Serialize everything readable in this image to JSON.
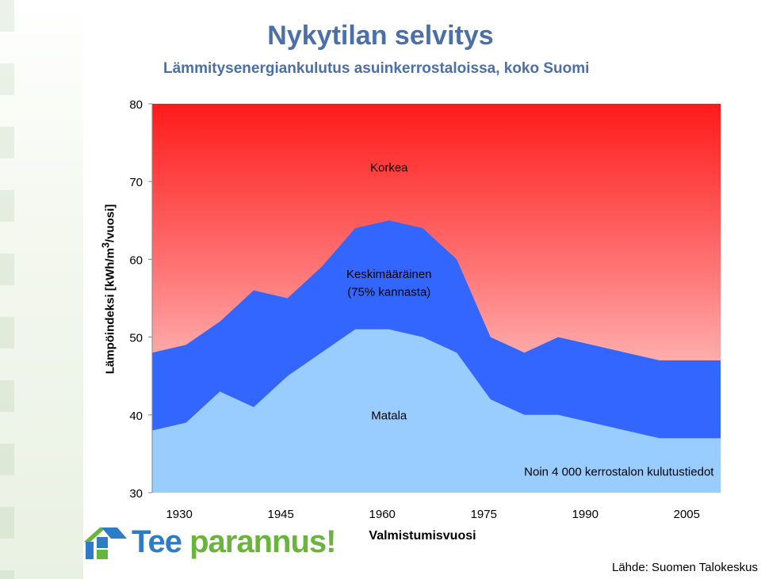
{
  "title": "Nykytilan selvitys",
  "subtitle": "Lämmitysenergiankulutus asuinkerrostaloissa, koko Suomi",
  "source": "Lähde: Suomen Talokeskus",
  "logo": {
    "part1": "Tee",
    "part2": "parannus!",
    "icon": "house-icon"
  },
  "colors": {
    "red_zone": "#ff1a1a",
    "mid_band": "#3366ff",
    "low_band": "#99ccff"
  },
  "chart_data": {
    "type": "area",
    "title": "Lämmitysenergiankulutus asuinkerrostaloissa, koko Suomi",
    "xlabel": "Valmistumisvuosi",
    "ylabel_main": "Lämpöindeksi [kWh/m",
    "ylabel_sup": "3",
    "ylabel_end": "/vuosi]",
    "xlim": [
      1926,
      2010
    ],
    "ylim": [
      30,
      80
    ],
    "x_ticks": [
      1930,
      1945,
      1960,
      1975,
      1990,
      2005
    ],
    "y_ticks": [
      30,
      40,
      50,
      60,
      70,
      80
    ],
    "x": [
      1926,
      1931,
      1936,
      1941,
      1946,
      1951,
      1956,
      1961,
      1966,
      1971,
      1976,
      1981,
      1986,
      1991,
      1996,
      2001,
      2006,
      2010
    ],
    "series": [
      {
        "name": "Korkea",
        "values": [
          80,
          80,
          80,
          80,
          80,
          80,
          80,
          80,
          80,
          80,
          80,
          80,
          80,
          80,
          80,
          80,
          80,
          80
        ]
      },
      {
        "name": "Keskimääräinen (75% kannasta)",
        "values": [
          48,
          49,
          52,
          56,
          55,
          59,
          64,
          65,
          64,
          60,
          50,
          48,
          50,
          49,
          48,
          47,
          47,
          47
        ]
      },
      {
        "name": "Matala",
        "values": [
          38,
          39,
          43,
          41,
          45,
          48,
          51,
          51,
          50,
          48,
          42,
          40,
          40,
          39,
          38,
          37,
          37,
          37
        ]
      }
    ],
    "region_labels": [
      {
        "text": "Korkea",
        "x": 1961,
        "y": 71.3
      },
      {
        "text": "Keskimääräinen",
        "x": 1961,
        "y": 57.6
      },
      {
        "text": "(75% kannasta)",
        "x": 1961,
        "y": 55.3
      },
      {
        "text": "Matala",
        "x": 1961,
        "y": 39.4
      }
    ],
    "annotation": {
      "text": "Noin 4 000 kerrostalon kulutustiedot",
      "x": 2009,
      "y": 32.2
    }
  }
}
